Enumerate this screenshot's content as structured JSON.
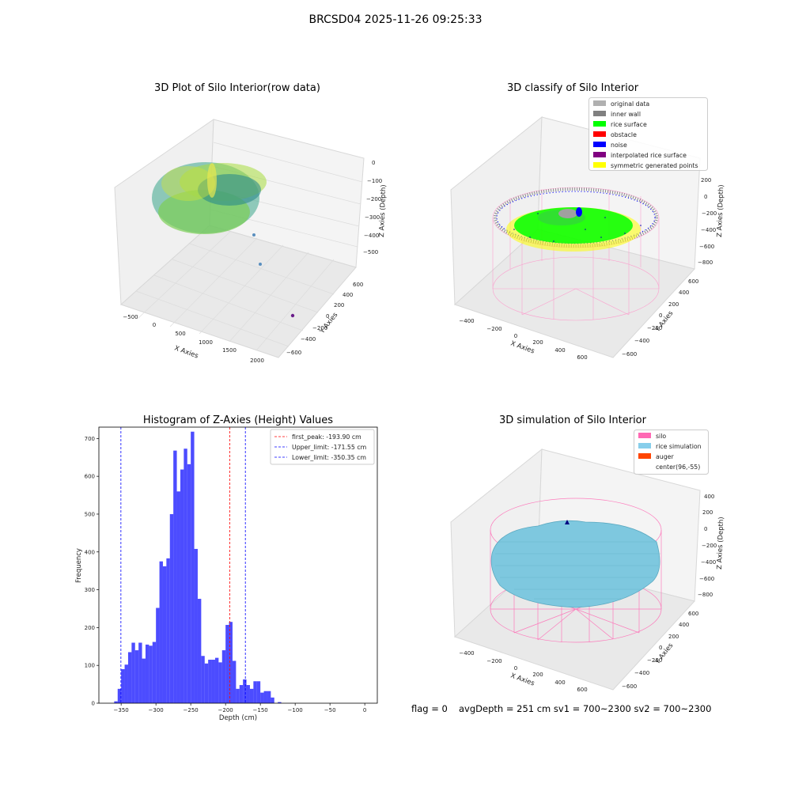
{
  "suptitle": "BRCSD04 2025-11-26 09:25:33",
  "panel1": {
    "title": "3D Plot of Silo Interior(row data)",
    "xlabel": "X Axies",
    "ylabel": "Y Axies",
    "zlabel": "Z Axies (Depth)",
    "xticks": [
      "−500",
      "0",
      "500",
      "1000",
      "1500",
      "2000"
    ],
    "yticks": [
      "−600",
      "−400",
      "−200",
      "0",
      "200",
      "400",
      "600"
    ],
    "zticks": [
      "0",
      "−100",
      "−200",
      "−300",
      "−400",
      "−500"
    ]
  },
  "panel2": {
    "title": "3D classify of Silo Interior",
    "xlabel": "X Axies",
    "ylabel": "Y Axies",
    "zlabel": "Z Axies (Depth)",
    "xticks": [
      "−400",
      "−200",
      "0",
      "200",
      "400",
      "600"
    ],
    "yticks": [
      "−600",
      "−400",
      "−200",
      "0",
      "200",
      "400",
      "600"
    ],
    "zticks": [
      "200",
      "0",
      "−200",
      "−400",
      "−600",
      "−800"
    ],
    "legend": [
      {
        "label": "original data",
        "color": "#b0b0b0"
      },
      {
        "label": "inner wall",
        "color": "#808080"
      },
      {
        "label": "rice surface",
        "color": "#00ff00"
      },
      {
        "label": "obstacle",
        "color": "#ff0000"
      },
      {
        "label": "noise",
        "color": "#0000ff"
      },
      {
        "label": "interpolated rice surface",
        "color": "#800080"
      },
      {
        "label": "symmetric generated points",
        "color": "#ffff00"
      }
    ]
  },
  "panel4": {
    "title": "3D simulation of Silo Interior",
    "xlabel": "X Axies",
    "ylabel": "Y Axies",
    "zlabel": "Z Axies (Depth)",
    "xticks": [
      "−400",
      "−200",
      "0",
      "200",
      "400",
      "600"
    ],
    "yticks": [
      "−600",
      "−400",
      "−200",
      "0",
      "200",
      "400",
      "600"
    ],
    "zticks": [
      "400",
      "200",
      "0",
      "−200",
      "−400",
      "−600",
      "−800"
    ],
    "legend": [
      {
        "label": "silo",
        "color": "#ff69b4"
      },
      {
        "label": "rice simulation",
        "color": "#87ceeb"
      },
      {
        "label": "auger",
        "color": "#ff4500"
      },
      {
        "label": "center(96,-55)",
        "color": ""
      }
    ]
  },
  "footer": {
    "flag": "flag = 0",
    "avg": "avgDepth = 251 cm  sv1 = 700~2300  sv2 = 700~2300"
  },
  "chart_data": {
    "type": "bar",
    "title": "Histogram of Z-Axies (Height) Values",
    "xlabel": "Depth (cm)",
    "ylabel": "Frequency",
    "xlim": [
      -382,
      18
    ],
    "ylim": [
      0,
      730
    ],
    "xticks": [
      -350,
      -300,
      -250,
      -200,
      -150,
      -100,
      -50,
      0
    ],
    "yticks": [
      0,
      100,
      200,
      300,
      400,
      500,
      600,
      700
    ],
    "bin_width": 5,
    "bar_color": "#0000ff",
    "bins": [
      {
        "x": -360,
        "v": 5
      },
      {
        "x": -355,
        "v": 38
      },
      {
        "x": -350,
        "v": 90
      },
      {
        "x": -345,
        "v": 102
      },
      {
        "x": -340,
        "v": 135
      },
      {
        "x": -335,
        "v": 160
      },
      {
        "x": -330,
        "v": 140
      },
      {
        "x": -325,
        "v": 160
      },
      {
        "x": -320,
        "v": 118
      },
      {
        "x": -315,
        "v": 155
      },
      {
        "x": -310,
        "v": 152
      },
      {
        "x": -305,
        "v": 162
      },
      {
        "x": -300,
        "v": 252
      },
      {
        "x": -295,
        "v": 375
      },
      {
        "x": -290,
        "v": 362
      },
      {
        "x": -285,
        "v": 383
      },
      {
        "x": -280,
        "v": 500
      },
      {
        "x": -275,
        "v": 668
      },
      {
        "x": -270,
        "v": 560
      },
      {
        "x": -265,
        "v": 618
      },
      {
        "x": -260,
        "v": 673
      },
      {
        "x": -255,
        "v": 632
      },
      {
        "x": -250,
        "v": 718
      },
      {
        "x": -245,
        "v": 408
      },
      {
        "x": -240,
        "v": 276
      },
      {
        "x": -235,
        "v": 125
      },
      {
        "x": -230,
        "v": 105
      },
      {
        "x": -225,
        "v": 115
      },
      {
        "x": -220,
        "v": 115
      },
      {
        "x": -215,
        "v": 120
      },
      {
        "x": -210,
        "v": 108
      },
      {
        "x": -205,
        "v": 140
      },
      {
        "x": -200,
        "v": 207
      },
      {
        "x": -195,
        "v": 215
      },
      {
        "x": -190,
        "v": 112
      },
      {
        "x": -185,
        "v": 38
      },
      {
        "x": -180,
        "v": 48
      },
      {
        "x": -175,
        "v": 63
      },
      {
        "x": -170,
        "v": 48
      },
      {
        "x": -165,
        "v": 38
      },
      {
        "x": -160,
        "v": 58
      },
      {
        "x": -155,
        "v": 58
      },
      {
        "x": -150,
        "v": 28
      },
      {
        "x": -145,
        "v": 32
      },
      {
        "x": -140,
        "v": 32
      },
      {
        "x": -135,
        "v": 15
      },
      {
        "x": -130,
        "v": 0
      },
      {
        "x": -125,
        "v": 3
      },
      {
        "x": -120,
        "v": 0
      }
    ],
    "vlines": [
      {
        "label": "first_peak: -193.90 cm",
        "x": -193.9,
        "color": "#ff0000"
      },
      {
        "label": "Upper_limit: -171.55 cm",
        "x": -171.55,
        "color": "#0000ff"
      },
      {
        "label": "Lower_limit: -350.35 cm",
        "x": -350.35,
        "color": "#0000ff"
      }
    ]
  }
}
